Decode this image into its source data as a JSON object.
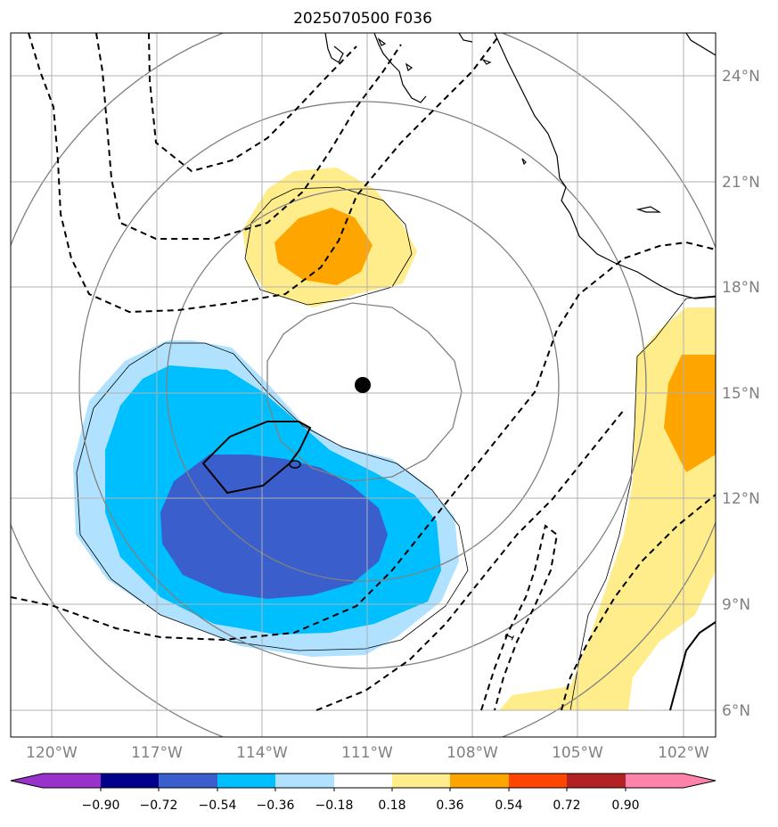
{
  "title": "2025070500 F036",
  "lon_labels": [
    "120°W",
    "117°W",
    "114°W",
    "111°W",
    "108°W",
    "105°W",
    "102°W"
  ],
  "lat_labels": [
    "24°N",
    "21°N",
    "18°N",
    "15°N",
    "12°N",
    "9°N",
    "6°N"
  ],
  "colorbar": {
    "tick_labels": [
      "−0.90",
      "−0.72",
      "−0.54",
      "−0.36",
      "−0.18",
      "0.18",
      "0.36",
      "0.54",
      "0.72",
      "0.90"
    ],
    "colors": [
      "#9932cc",
      "#00008b",
      "#3a5fcd",
      "#00bfff",
      "#b0e2ff",
      "#ffffff",
      "#ffec8b",
      "#ffa500",
      "#ff4500",
      "#b22222",
      "#ff82ab"
    ]
  },
  "contour_label": "1",
  "colors": {
    "positive_light": "#ffec8b",
    "positive_mid": "#ffa500",
    "negative_light": "#b0e2ff",
    "negative_mid": "#00bfff",
    "negative_dark": "#3a5fcd",
    "gray_contour": "#808080",
    "grid": "#b0b0b0"
  },
  "storm_center": {
    "lat": 15.2,
    "lon": -111.2
  }
}
